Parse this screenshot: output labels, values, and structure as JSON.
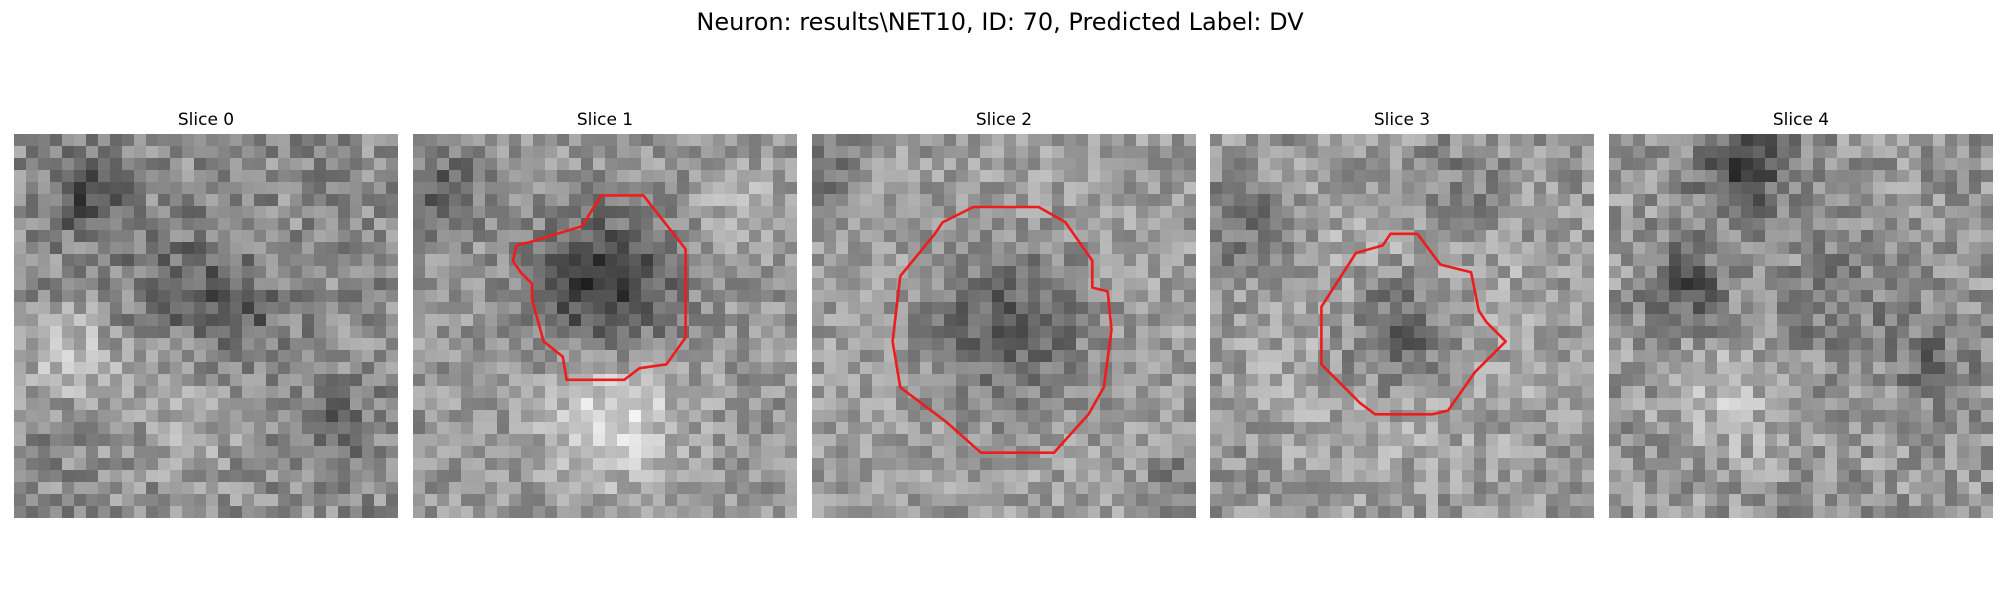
{
  "title": "Neuron: results\\NET10, ID: 70, Predicted Label: DV",
  "panels": [
    {
      "title": "Slice 0",
      "roi": false,
      "seed": 11
    },
    {
      "title": "Slice 1",
      "roi": true,
      "seed": 23
    },
    {
      "title": "Slice 2",
      "roi": true,
      "seed": 37
    },
    {
      "title": "Slice 3",
      "roi": true,
      "seed": 41
    },
    {
      "title": "Slice 4",
      "roi": false,
      "seed": 59
    }
  ],
  "colors": {
    "contour": "#ee1c1c",
    "background": "#ffffff"
  },
  "colormap": "gray"
}
